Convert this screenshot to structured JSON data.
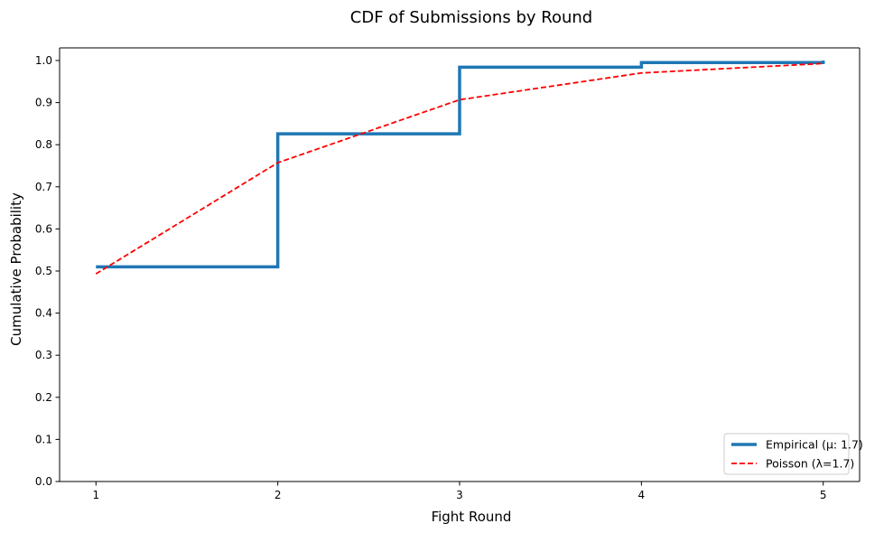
{
  "chart_data": {
    "type": "line",
    "title": "CDF of Submissions by Round",
    "xlabel": "Fight Round",
    "ylabel": "Cumulative Probability",
    "xlim": [
      0.8,
      5.2
    ],
    "ylim": [
      0.0,
      1.03
    ],
    "xticks": [
      1,
      2,
      3,
      4,
      5
    ],
    "yticks": [
      0.0,
      0.1,
      0.2,
      0.3,
      0.4,
      0.5,
      0.6,
      0.7,
      0.8,
      0.9,
      1.0
    ],
    "ytick_labels": [
      "0.0",
      "0.1",
      "0.2",
      "0.3",
      "0.4",
      "0.5",
      "0.6",
      "0.7",
      "0.8",
      "0.9",
      "1.0"
    ],
    "grid": false,
    "legend_position": "bottom-right",
    "series": [
      {
        "name": "Empirical (μ: 1.7)",
        "style": "step-post",
        "color": "#1f77b4",
        "x": [
          1,
          2,
          3,
          4,
          5
        ],
        "y": [
          0.51,
          0.826,
          0.984,
          0.995,
          1.0
        ]
      },
      {
        "name": "Poisson (λ=1.7)",
        "style": "dashed",
        "color": "#ff0000",
        "x": [
          1,
          2,
          3,
          4,
          5
        ],
        "y": [
          0.4932,
          0.7572,
          0.9068,
          0.9704,
          0.9929
        ]
      }
    ]
  }
}
